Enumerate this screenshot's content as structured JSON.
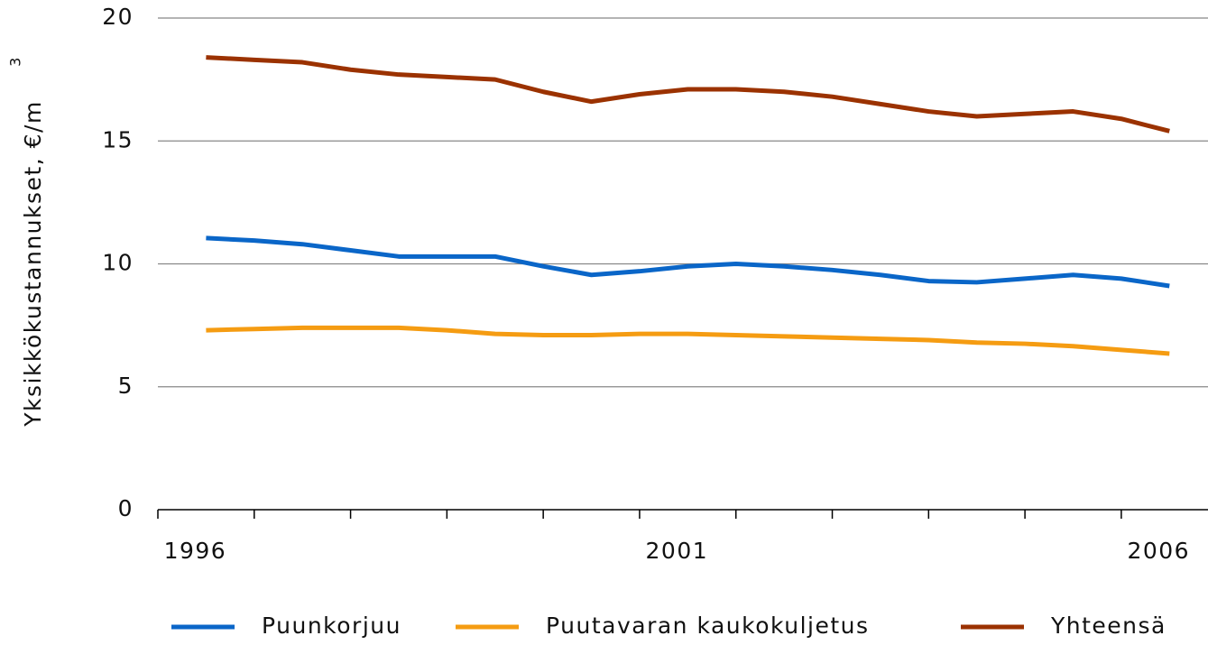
{
  "chart_data": {
    "type": "line",
    "y_label": "Yksikkökustannukset, €/m",
    "y_label_superscript": "3",
    "x": [
      1996,
      1996.5,
      1997,
      1997.5,
      1998,
      1998.5,
      1999,
      1999.5,
      2000,
      2000.5,
      2001,
      2001.5,
      2002,
      2002.5,
      2003,
      2003.5,
      2004,
      2004.5,
      2005,
      2005.5,
      2006
    ],
    "series": [
      {
        "name": "Puunkorjuu",
        "color": "#0a66c8",
        "values": [
          11.05,
          10.95,
          10.8,
          10.55,
          10.3,
          10.3,
          10.3,
          9.9,
          9.55,
          9.7,
          9.9,
          10.0,
          9.9,
          9.75,
          9.55,
          9.3,
          9.25,
          9.4,
          9.55,
          9.4,
          9.1
        ]
      },
      {
        "name": "Puutavaran kaukokuljetus",
        "color": "#f59c12",
        "values": [
          7.3,
          7.35,
          7.4,
          7.4,
          7.4,
          7.3,
          7.15,
          7.1,
          7.1,
          7.15,
          7.15,
          7.1,
          7.05,
          7.0,
          6.95,
          6.9,
          6.8,
          6.75,
          6.65,
          6.5,
          6.35
        ]
      },
      {
        "name": "Yhteensä",
        "color": "#9b3200",
        "values": [
          18.4,
          18.3,
          18.2,
          17.9,
          17.7,
          17.6,
          17.5,
          17.0,
          16.6,
          16.9,
          17.1,
          17.1,
          17.0,
          16.8,
          16.5,
          16.2,
          16.0,
          16.1,
          16.2,
          15.9,
          15.4
        ]
      }
    ],
    "xlim": [
      1995.5,
      2006.4
    ],
    "xticks": [
      1996,
      2001,
      2006
    ],
    "xminorticks": [
      1995.5,
      1996.5,
      1997.5,
      1998.5,
      1999.5,
      2000.5,
      2001.5,
      2002.5,
      2003.5,
      2004.5,
      2005.5
    ],
    "ylim": [
      0,
      20
    ],
    "yticks": [
      0,
      5,
      10,
      15,
      20
    ],
    "grid": true,
    "legend": "bottom"
  }
}
